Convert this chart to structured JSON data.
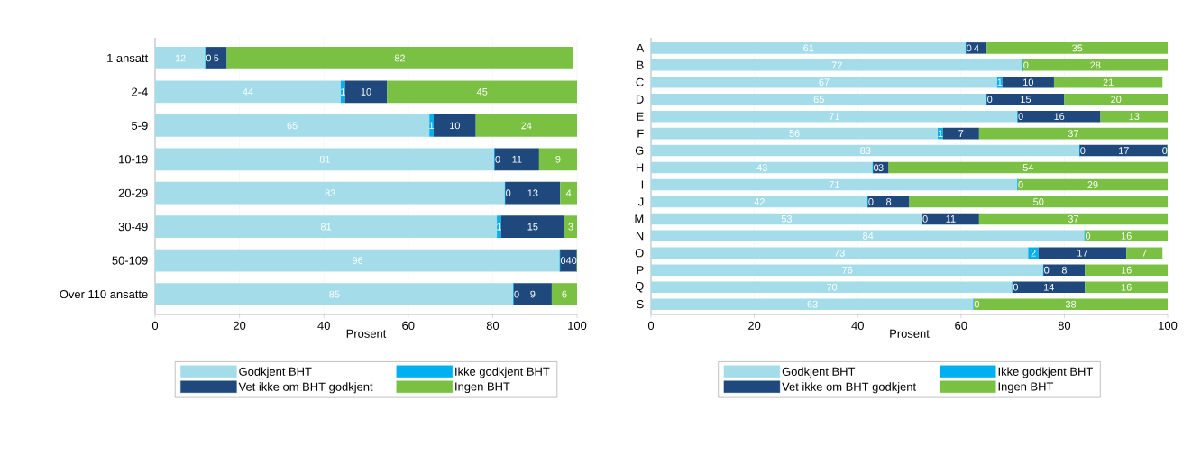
{
  "chart_data": [
    {
      "type": "bar",
      "orientation": "horizontal",
      "stacked": true,
      "xlabel": "Prosent",
      "xlim": [
        0,
        100
      ],
      "xticks": [
        0,
        20,
        40,
        60,
        80,
        100
      ],
      "grid": "x",
      "legend": "bottom",
      "categories": [
        "1 ansatt",
        "2-4",
        "5-9",
        "10-19",
        "20-29",
        "30-49",
        "50-109",
        "Over 110 ansatte"
      ],
      "series": [
        {
          "name": "Godkjent BHT",
          "color": "#a4dde9",
          "values": [
            12,
            44,
            65,
            80.5,
            83,
            81,
            96,
            85
          ],
          "value_labels": [
            "12",
            "44",
            "65",
            "81",
            "83",
            "81",
            "96",
            "85"
          ]
        },
        {
          "name": "Ikke godkjent BHT",
          "color": "#00b0f0",
          "values": [
            0,
            1,
            1,
            0,
            0,
            1,
            0,
            0
          ],
          "value_labels": [
            "0",
            "1",
            "1",
            "0",
            "0",
            "1",
            "0",
            "0"
          ]
        },
        {
          "name": "Vet ikke om BHT godkjent",
          "color": "#1f497d",
          "values": [
            5,
            10,
            10,
            10.5,
            13,
            15,
            4,
            9
          ],
          "value_labels": [
            "5",
            "10",
            "10",
            "11",
            "13",
            "15",
            "4",
            "9"
          ]
        },
        {
          "name": "Ingen BHT",
          "color": "#7ac143",
          "values": [
            82,
            45,
            24,
            9,
            4,
            3,
            0,
            6
          ],
          "value_labels": [
            "82",
            "45",
            "24",
            "9",
            "4",
            "3",
            "0",
            "6"
          ]
        }
      ]
    },
    {
      "type": "bar",
      "orientation": "horizontal",
      "stacked": true,
      "xlabel": "Prosent",
      "xlim": [
        0,
        100
      ],
      "xticks": [
        0,
        20,
        40,
        60,
        80,
        100
      ],
      "grid": "x",
      "legend": "bottom",
      "categories": [
        "A",
        "B",
        "C",
        "D",
        "E",
        "F",
        "G",
        "H",
        "I",
        "J",
        "M",
        "N",
        "O",
        "P",
        "Q",
        "S"
      ],
      "series": [
        {
          "name": "Godkjent BHT",
          "color": "#a4dde9",
          "values": [
            61,
            72,
            67,
            65,
            71,
            55.5,
            83,
            43,
            71,
            42,
            52.5,
            84,
            73,
            76,
            70,
            62.5
          ],
          "value_labels": [
            "61",
            "72",
            "67",
            "65",
            "71",
            "56",
            "83",
            "43",
            "71",
            "42",
            "53",
            "84",
            "73",
            "76",
            "70",
            "63"
          ]
        },
        {
          "name": "Ikke godkjent BHT",
          "color": "#00b0f0",
          "values": [
            0,
            0,
            1,
            0,
            0,
            1,
            0,
            0,
            0,
            0,
            0,
            0,
            2,
            0,
            0,
            0
          ],
          "value_labels": [
            "0",
            "0",
            "1",
            "0",
            "0",
            "1",
            "0",
            "0",
            "0",
            "0",
            "0",
            "0",
            "2",
            "0",
            "0",
            "0"
          ]
        },
        {
          "name": "Vet ikke om BHT godkjent",
          "color": "#1f497d",
          "values": [
            4,
            null,
            10,
            15,
            16,
            7,
            17,
            3,
            null,
            8,
            11,
            null,
            17,
            8,
            14,
            null
          ],
          "value_labels": [
            "4",
            null,
            "10",
            "15",
            "16",
            "7",
            "17",
            "3",
            null,
            "8",
            "11",
            null,
            "17",
            "8",
            "14",
            null
          ]
        },
        {
          "name": "Ingen BHT",
          "color": "#7ac143",
          "values": [
            35,
            28,
            21,
            20,
            13,
            36.5,
            0,
            54,
            29,
            50,
            36.5,
            16,
            7,
            16,
            16,
            37.5
          ],
          "value_labels": [
            "35",
            "28",
            "21",
            "20",
            "13",
            "37",
            "0",
            "54",
            "29",
            "50",
            "37",
            "16",
            "7",
            "16",
            "16",
            "38"
          ]
        }
      ]
    }
  ]
}
